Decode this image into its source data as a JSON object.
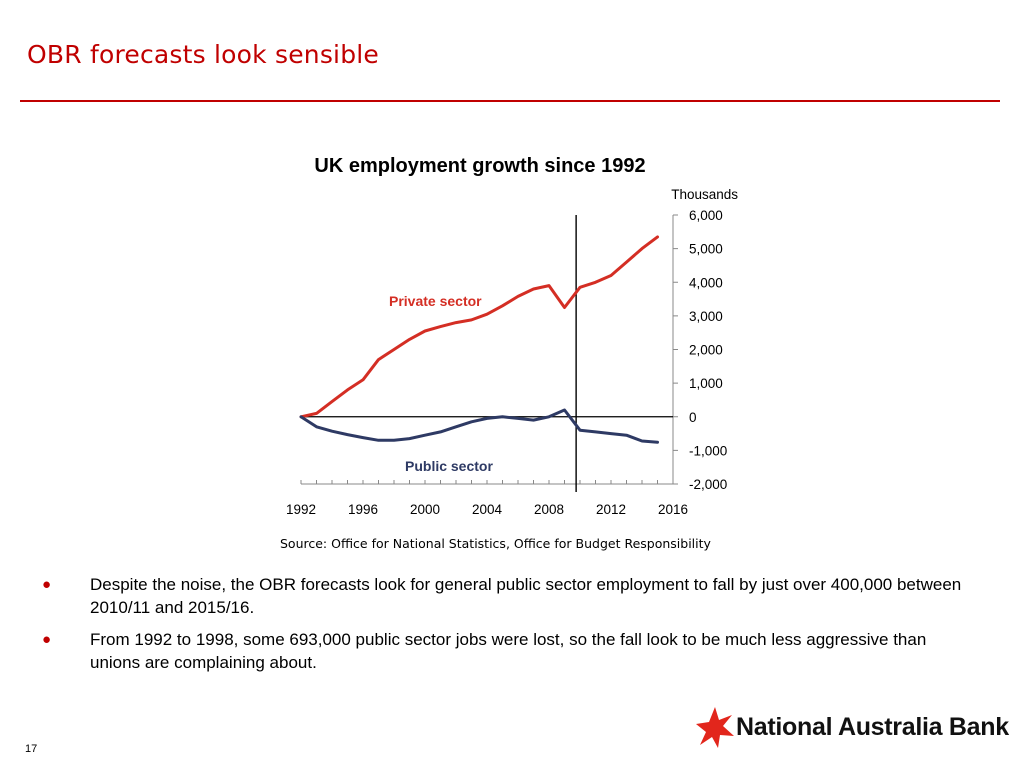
{
  "slide": {
    "title": "OBR forecasts look sensible",
    "source": "Source: Office for National Statistics, Office for Budget Responsibility",
    "page_number": "17",
    "bullets": [
      "Despite the noise, the OBR forecasts look for general public sector employment to fall by just over 400,000 between 2010/11 and 2015/16.",
      "From 1992 to 1998, some 693,000 public sector jobs were lost, so the fall look to be much less aggressive than unions are complaining about."
    ],
    "bullet_symbol": "●",
    "logo_text": "National Australia Bank",
    "colors": {
      "title": "#c00000",
      "private": "#d42e24",
      "public": "#2e3a64",
      "logo_star": "#e2261c"
    }
  },
  "chart_data": {
    "type": "line",
    "title": "UK employment growth since 1992",
    "ylabel": "Thousands",
    "y_axis_side": "right",
    "ylim": [
      -2000,
      6000
    ],
    "yticks": [
      -2000,
      -1000,
      0,
      1000,
      2000,
      3000,
      4000,
      5000,
      6000
    ],
    "ytick_labels": [
      "-2,000",
      "-1,000",
      "0",
      "1,000",
      "2,000",
      "3,000",
      "4,000",
      "5,000",
      "6,000"
    ],
    "xlim": [
      1992,
      2016
    ],
    "xticks": [
      1992,
      1996,
      2000,
      2004,
      2008,
      2012,
      2016
    ],
    "xtick_labels": [
      "1992",
      "1996",
      "2000",
      "2004",
      "2008",
      "2012",
      "2016"
    ],
    "vline_at": 2009.75,
    "grid": false,
    "legend": "inline labels",
    "series": [
      {
        "name": "Private sector",
        "color": "#d42e24",
        "x": [
          1992,
          1993,
          1994,
          1995,
          1996,
          1997,
          1998,
          1999,
          2000,
          2001,
          2002,
          2003,
          2004,
          2005,
          2006,
          2007,
          2008,
          2009,
          2010,
          2011,
          2012,
          2013,
          2014,
          2015
        ],
        "y": [
          0,
          100,
          450,
          800,
          1100,
          1700,
          2000,
          2300,
          2550,
          2680,
          2800,
          2880,
          3050,
          3300,
          3580,
          3800,
          3900,
          3250,
          3850,
          4000,
          4200,
          4600,
          5000,
          5350
        ]
      },
      {
        "name": "Public sector",
        "color": "#2e3a64",
        "x": [
          1992,
          1993,
          1994,
          1995,
          1996,
          1997,
          1998,
          1999,
          2000,
          2001,
          2002,
          2003,
          2004,
          2005,
          2006,
          2007,
          2008,
          2009,
          2010,
          2011,
          2012,
          2013,
          2014,
          2015
        ],
        "y": [
          0,
          -300,
          -430,
          -530,
          -620,
          -700,
          -700,
          -650,
          -550,
          -450,
          -300,
          -150,
          -50,
          0,
          -50,
          -100,
          0,
          200,
          -400,
          -450,
          -500,
          -550,
          -720,
          -760
        ]
      }
    ]
  }
}
